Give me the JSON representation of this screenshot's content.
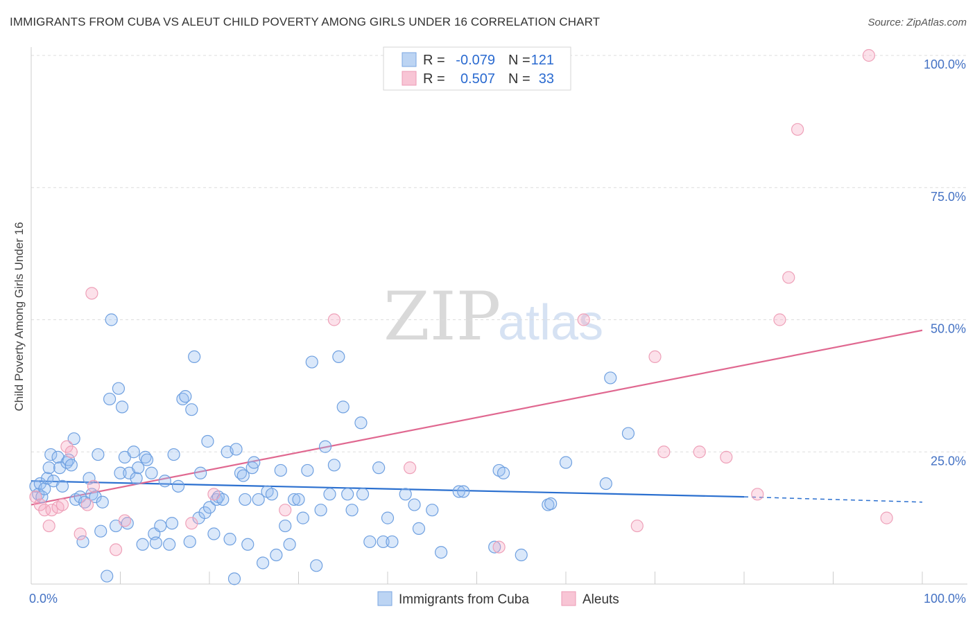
{
  "header": {
    "title": "IMMIGRANTS FROM CUBA VS ALEUT CHILD POVERTY AMONG GIRLS UNDER 16 CORRELATION CHART",
    "source": "Source: ZipAtlas.com"
  },
  "watermark": {
    "zip": "ZIP",
    "atlas": "atlas"
  },
  "chart_data": {
    "type": "scatter",
    "ylabel": "Child Poverty Among Girls Under 16",
    "xlim": [
      0,
      100
    ],
    "ylim": [
      0,
      100
    ],
    "x_ticks": [
      {
        "value": 0,
        "label": "0.0%"
      },
      {
        "value": 100,
        "label": "100.0%"
      }
    ],
    "y_ticks": [
      {
        "value": 25,
        "label": "25.0%"
      },
      {
        "value": 50,
        "label": "50.0%"
      },
      {
        "value": 75,
        "label": "75.0%"
      },
      {
        "value": 100,
        "label": "100.0%"
      }
    ],
    "grid": true,
    "legend": {
      "position": "top-center",
      "rows": [
        {
          "r_label": "R =",
          "r_value": "-0.079",
          "n_label": "N =",
          "n_value": "121"
        },
        {
          "r_label": "R =",
          "r_value": "0.507",
          "n_label": "N =",
          "n_value": "33"
        }
      ]
    },
    "colors": {
      "cuba": "#6fa0e0",
      "aleut": "#f0a0bb",
      "cuba_line": "#2a6fcf",
      "aleut_line": "#e06890"
    },
    "series": [
      {
        "name": "Immigrants from Cuba",
        "color": "#6fa0e0",
        "trend": {
          "x0": 0,
          "y0": 19.5,
          "x1": 80,
          "y1": 16.5,
          "dash_x1": 100,
          "dash_y1": 15.5
        },
        "points": [
          [
            0.5,
            18.5
          ],
          [
            0.8,
            17
          ],
          [
            1,
            19
          ],
          [
            1.2,
            16.5
          ],
          [
            1.5,
            18
          ],
          [
            1.8,
            20
          ],
          [
            2,
            22
          ],
          [
            2.2,
            24.5
          ],
          [
            2.5,
            19.5
          ],
          [
            3,
            24
          ],
          [
            3.2,
            22
          ],
          [
            3.5,
            18.5
          ],
          [
            4,
            23
          ],
          [
            4.2,
            23.5
          ],
          [
            4.5,
            22.5
          ],
          [
            4.8,
            27.5
          ],
          [
            5,
            16
          ],
          [
            5.5,
            16.5
          ],
          [
            5.8,
            8
          ],
          [
            6,
            15.5
          ],
          [
            6.5,
            20
          ],
          [
            6.8,
            17
          ],
          [
            7.2,
            16.5
          ],
          [
            7.5,
            24.5
          ],
          [
            7.8,
            10
          ],
          [
            8,
            15.5
          ],
          [
            8.5,
            1.5
          ],
          [
            8.8,
            35
          ],
          [
            9,
            50
          ],
          [
            9.5,
            11
          ],
          [
            9.8,
            37
          ],
          [
            10,
            21
          ],
          [
            10.2,
            33.5
          ],
          [
            10.5,
            24
          ],
          [
            10.8,
            11.5
          ],
          [
            11,
            21
          ],
          [
            11.5,
            25
          ],
          [
            11.8,
            20
          ],
          [
            12,
            22
          ],
          [
            12.5,
            7.5
          ],
          [
            12.8,
            24
          ],
          [
            13,
            23.5
          ],
          [
            13.5,
            21
          ],
          [
            13.8,
            9.5
          ],
          [
            14,
            7.8
          ],
          [
            14.5,
            11
          ],
          [
            15,
            19.5
          ],
          [
            15.5,
            7.5
          ],
          [
            15.8,
            11.5
          ],
          [
            16,
            24.5
          ],
          [
            16.5,
            18.5
          ],
          [
            17,
            35
          ],
          [
            17.3,
            35.5
          ],
          [
            17.8,
            8
          ],
          [
            18,
            33
          ],
          [
            18.3,
            43
          ],
          [
            18.8,
            12.5
          ],
          [
            19,
            21
          ],
          [
            19.5,
            13.5
          ],
          [
            19.8,
            27
          ],
          [
            20,
            14.5
          ],
          [
            20.5,
            9.5
          ],
          [
            20.8,
            16
          ],
          [
            21,
            16.5
          ],
          [
            21.5,
            16
          ],
          [
            22,
            25
          ],
          [
            22.3,
            8.5
          ],
          [
            22.8,
            1
          ],
          [
            23,
            25.5
          ],
          [
            23.5,
            21
          ],
          [
            23.8,
            20.5
          ],
          [
            24,
            16
          ],
          [
            24.3,
            7.5
          ],
          [
            24.8,
            22
          ],
          [
            25,
            23
          ],
          [
            25.5,
            16
          ],
          [
            26,
            4
          ],
          [
            26.5,
            17.5
          ],
          [
            27,
            17
          ],
          [
            27.5,
            5.5
          ],
          [
            28,
            21.5
          ],
          [
            28.5,
            11
          ],
          [
            29,
            7.5
          ],
          [
            29.5,
            16
          ],
          [
            30,
            16
          ],
          [
            30.5,
            12.5
          ],
          [
            31,
            21.5
          ],
          [
            31.5,
            42
          ],
          [
            32,
            3.5
          ],
          [
            32.5,
            14
          ],
          [
            33,
            26
          ],
          [
            33.5,
            17
          ],
          [
            34,
            22.5
          ],
          [
            34.5,
            43
          ],
          [
            35,
            33.5
          ],
          [
            35.5,
            17
          ],
          [
            36,
            14
          ],
          [
            37,
            30.5
          ],
          [
            37.2,
            17
          ],
          [
            38,
            8
          ],
          [
            39,
            22
          ],
          [
            39.5,
            8
          ],
          [
            40,
            12.5
          ],
          [
            40.5,
            8
          ],
          [
            42,
            17
          ],
          [
            43,
            15
          ],
          [
            43.5,
            10.5
          ],
          [
            45,
            14
          ],
          [
            46,
            6
          ],
          [
            48,
            17.5
          ],
          [
            48.5,
            17.5
          ],
          [
            52,
            7
          ],
          [
            52.5,
            21.5
          ],
          [
            53,
            21
          ],
          [
            55,
            5.5
          ],
          [
            58,
            15
          ],
          [
            60,
            23
          ],
          [
            64.5,
            19
          ],
          [
            65,
            39
          ],
          [
            67,
            28.5
          ],
          [
            58.3,
            15.2
          ]
        ]
      },
      {
        "name": "Aleuts",
        "color": "#f0a0bb",
        "trend": {
          "x0": 0,
          "y0": 15,
          "x1": 100,
          "y1": 48
        },
        "points": [
          [
            0.5,
            16.5
          ],
          [
            1,
            15
          ],
          [
            1.5,
            14
          ],
          [
            2,
            11
          ],
          [
            2.3,
            14
          ],
          [
            3,
            14.5
          ],
          [
            3.5,
            15
          ],
          [
            4,
            26
          ],
          [
            4.5,
            25
          ],
          [
            5.5,
            9.5
          ],
          [
            6.3,
            15
          ],
          [
            6.8,
            55
          ],
          [
            7,
            18.5
          ],
          [
            9.5,
            6.5
          ],
          [
            10.5,
            12
          ],
          [
            18,
            11.5
          ],
          [
            20.5,
            17
          ],
          [
            28.5,
            14
          ],
          [
            34,
            50
          ],
          [
            42.5,
            22
          ],
          [
            52.5,
            7
          ],
          [
            62,
            50
          ],
          [
            68,
            11
          ],
          [
            70,
            43
          ],
          [
            71,
            25
          ],
          [
            75,
            25
          ],
          [
            78,
            24
          ],
          [
            81.5,
            17
          ],
          [
            84,
            50
          ],
          [
            85,
            58
          ],
          [
            86,
            86
          ],
          [
            94,
            100
          ],
          [
            96,
            12.5
          ]
        ]
      }
    ]
  }
}
